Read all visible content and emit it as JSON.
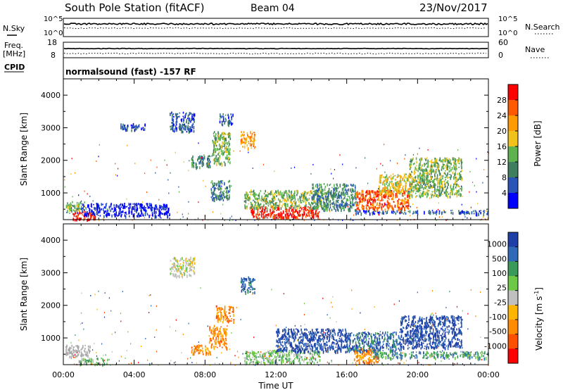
{
  "header": {
    "title": "South Pole Station (fitACF)",
    "beam": "Beam 04",
    "date": "23/Nov/2017"
  },
  "params": {
    "nsky_label": "N.Sky",
    "nsearch_label": "N.Search",
    "noise_tick_top": "10^5",
    "noise_tick_bottom": "10^0",
    "freq_label_1": "Freq.",
    "freq_label_2": "[MHz]",
    "freq_ticks": [
      "18",
      "8"
    ],
    "nave_label": "Nave",
    "nave_ticks": [
      "60",
      "0"
    ],
    "cpid_label": "CPID",
    "cpid_value": "normalsound (fast)  -157  RF"
  },
  "colors": {
    "power": [
      "#0000ff",
      "#2a55b8",
      "#3f7f5f",
      "#5fb34f",
      "#f2c21c",
      "#ff9a00",
      "#ff5a00",
      "#ff0000"
    ],
    "velocity": [
      "#ff0000",
      "#ff5000",
      "#ff8c00",
      "#ffb400",
      "#c0c0c0",
      "#6cc846",
      "#3a9a5a",
      "#2f6ab8",
      "#1f3fa8"
    ],
    "ground": "#a8a8a8"
  },
  "chart_data": [
    {
      "type": "heatmap",
      "panel": "power",
      "ylabel": "Slant Range [km]",
      "ylim": [
        180,
        4500
      ],
      "yticks": [
        "1000",
        "2000",
        "3000",
        "4000"
      ],
      "xlim": [
        0,
        24
      ],
      "colorbar": {
        "label": "Power [dB]",
        "range": [
          0,
          32
        ],
        "ticks": [
          "4",
          "8",
          "12",
          "16",
          "20",
          "24",
          "28"
        ]
      },
      "regions": [
        {
          "x0": 0.1,
          "x1": 1.2,
          "y0": 450,
          "y1": 750,
          "level": 3
        },
        {
          "x0": 0.5,
          "x1": 1.8,
          "y0": 200,
          "y1": 450,
          "level": 7
        },
        {
          "x0": 1.0,
          "x1": 6.0,
          "y0": 300,
          "y1": 700,
          "level": 0
        },
        {
          "x0": 3.2,
          "x1": 4.6,
          "y0": 2950,
          "y1": 3150,
          "level": 1
        },
        {
          "x0": 6.0,
          "x1": 7.4,
          "y0": 2900,
          "y1": 3500,
          "level": 1
        },
        {
          "x0": 7.2,
          "x1": 8.3,
          "y0": 1800,
          "y1": 2200,
          "level": 2
        },
        {
          "x0": 8.3,
          "x1": 9.4,
          "y0": 800,
          "y1": 1400,
          "level": 2
        },
        {
          "x0": 8.4,
          "x1": 9.4,
          "y0": 1900,
          "y1": 2900,
          "level": 3
        },
        {
          "x0": 8.8,
          "x1": 9.6,
          "y0": 3100,
          "y1": 3450,
          "level": 1
        },
        {
          "x0": 10.0,
          "x1": 10.8,
          "y0": 2400,
          "y1": 2900,
          "level": 5
        },
        {
          "x0": 10.5,
          "x1": 14.5,
          "y0": 250,
          "y1": 600,
          "level": 7
        },
        {
          "x0": 10.2,
          "x1": 15.0,
          "y0": 550,
          "y1": 1100,
          "level": 3
        },
        {
          "x0": 14.0,
          "x1": 16.5,
          "y0": 500,
          "y1": 1300,
          "level": 2
        },
        {
          "x0": 16.5,
          "x1": 19.5,
          "y0": 500,
          "y1": 1100,
          "level": 6
        },
        {
          "x0": 17.8,
          "x1": 19.8,
          "y0": 1000,
          "y1": 1600,
          "level": 4
        },
        {
          "x0": 19.5,
          "x1": 22.5,
          "y0": 900,
          "y1": 2100,
          "level": 3
        },
        {
          "x0": 16.5,
          "x1": 24.0,
          "y0": 380,
          "y1": 480,
          "level": 1
        }
      ]
    },
    {
      "type": "heatmap",
      "panel": "velocity",
      "ylabel": "Slant Range [km]",
      "xlabel": "Time UT",
      "ylim": [
        180,
        4500
      ],
      "yticks": [
        "1000",
        "2000",
        "3000",
        "4000"
      ],
      "xlim": [
        0,
        24
      ],
      "xticks": [
        "00:00",
        "04:00",
        "08:00",
        "12:00",
        "16:00",
        "20:00",
        "00:00"
      ],
      "colorbar": {
        "label": "Velocity [m s",
        "label_exp": "-1",
        "label_end": "]",
        "ticks": [
          "1000",
          "500",
          "100",
          "25",
          "-25",
          "-100",
          "-500",
          "-1000"
        ]
      },
      "regions": [
        {
          "x0": 0.1,
          "x1": 1.5,
          "y0": 450,
          "y1": 800,
          "level": "ground"
        },
        {
          "x0": 0.8,
          "x1": 2.5,
          "y0": 200,
          "y1": 400,
          "level": 5
        },
        {
          "x0": 6.0,
          "x1": 7.4,
          "y0": 2900,
          "y1": 3500,
          "level": 4
        },
        {
          "x0": 7.2,
          "x1": 8.3,
          "y0": 500,
          "y1": 800,
          "level": 2
        },
        {
          "x0": 8.2,
          "x1": 9.2,
          "y0": 700,
          "y1": 1400,
          "level": 2
        },
        {
          "x0": 8.6,
          "x1": 9.6,
          "y0": 1500,
          "y1": 2000,
          "level": 2
        },
        {
          "x0": 10.0,
          "x1": 10.8,
          "y0": 2400,
          "y1": 2900,
          "level": 7
        },
        {
          "x0": 10.2,
          "x1": 14.5,
          "y0": 250,
          "y1": 650,
          "level": 5
        },
        {
          "x0": 12.0,
          "x1": 16.0,
          "y0": 600,
          "y1": 1300,
          "level": 8
        },
        {
          "x0": 16.4,
          "x1": 17.8,
          "y0": 250,
          "y1": 700,
          "level": 2
        },
        {
          "x0": 16.0,
          "x1": 19.0,
          "y0": 600,
          "y1": 1200,
          "level": 7
        },
        {
          "x0": 19.0,
          "x1": 22.5,
          "y0": 700,
          "y1": 1700,
          "level": 8
        },
        {
          "x0": 17.5,
          "x1": 24.0,
          "y0": 400,
          "y1": 600,
          "level": 6
        }
      ]
    }
  ]
}
